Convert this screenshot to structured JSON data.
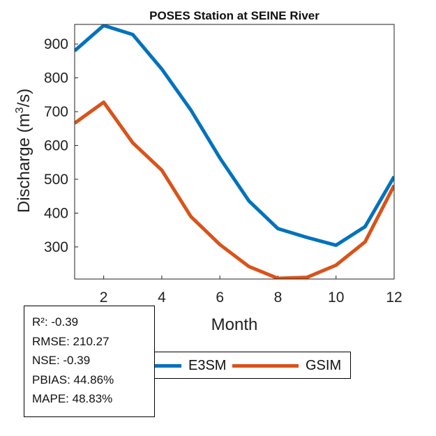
{
  "chart_data": {
    "type": "line",
    "title": "POSES  Station at  SEINE  River",
    "xlabel": "Month",
    "ylabel_main": "Discharge (m",
    "ylabel_sup": "3",
    "ylabel_tail": "/s)",
    "xlim": [
      1,
      12
    ],
    "ylim": [
      205,
      958
    ],
    "grid": false,
    "x": [
      1,
      2,
      3,
      4,
      5,
      6,
      7,
      8,
      9,
      10,
      11,
      12
    ],
    "xticks": [
      2,
      4,
      6,
      8,
      10,
      12
    ],
    "yticks": [
      300,
      400,
      500,
      600,
      700,
      800,
      900
    ],
    "series": [
      {
        "name": "E3SM",
        "color": "#0072BD",
        "values": [
          880,
          955,
          928,
          826,
          705,
          563,
          436,
          354,
          328,
          305,
          360,
          508
        ]
      },
      {
        "name": "GSIM",
        "color": "#D95319",
        "values": [
          666,
          728,
          608,
          527,
          390,
          307,
          242,
          207,
          210,
          246,
          315,
          482
        ]
      }
    ]
  },
  "stats": {
    "r2": "R²: -0.39",
    "rmse": "RMSE: 210.27",
    "nse": "NSE: -0.39",
    "pbias": "PBIAS: 44.86%",
    "mape": "MAPE: 48.83%"
  },
  "legend": {
    "e3sm_label": "E3SM",
    "gsim_label": "GSIM",
    "e3sm_color": "#0072BD",
    "gsim_color": "#D95319"
  }
}
